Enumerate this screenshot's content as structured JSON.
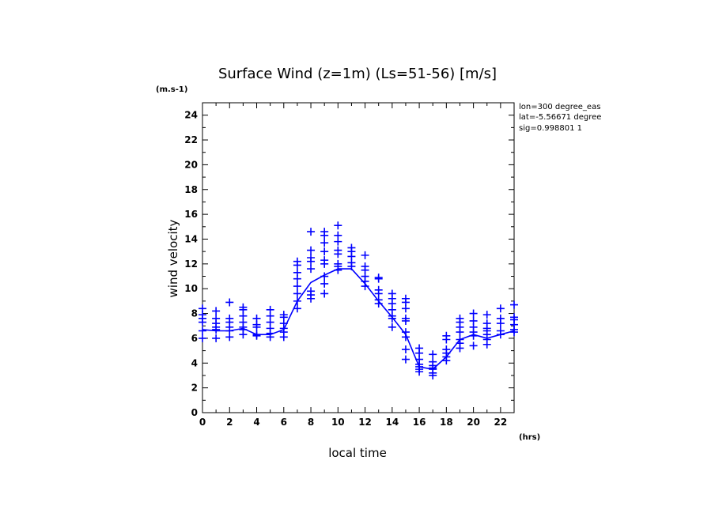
{
  "chart_data": {
    "type": "scatter",
    "title": "Surface Wind (z=1m) (Ls=51-56) [m/s]",
    "ylabel": "wind velocity",
    "yunit": "(m.s-1)",
    "xlabel": "local time",
    "xunit": "(hrs)",
    "xlim": [
      0,
      23
    ],
    "ylim": [
      0,
      25
    ],
    "xticks": [
      0,
      2,
      4,
      6,
      8,
      10,
      12,
      14,
      16,
      18,
      20,
      22
    ],
    "yticks": [
      0,
      2,
      4,
      6,
      8,
      10,
      12,
      14,
      16,
      18,
      20,
      22,
      24
    ],
    "info": [
      "lon=300 degree_eas",
      "lat=-5.56671 degree",
      "sig=0.998801 1"
    ],
    "color": "#0000ff",
    "line": {
      "x": [
        0,
        1,
        2,
        3,
        4,
        5,
        6,
        7,
        8,
        9,
        10,
        11,
        12,
        13,
        14,
        15,
        16,
        17,
        18,
        19,
        20,
        21,
        22,
        23
      ],
      "y": [
        6.7,
        6.6,
        6.6,
        6.8,
        6.3,
        6.3,
        6.7,
        9.0,
        10.5,
        11.1,
        11.6,
        11.6,
        10.4,
        9.0,
        7.7,
        6.3,
        3.7,
        3.5,
        4.5,
        5.9,
        6.3,
        6.0,
        6.3,
        6.6
      ]
    },
    "points": [
      {
        "x": 0,
        "y": [
          8.4,
          7.9,
          7.6,
          7.3,
          6.6,
          6.0
        ]
      },
      {
        "x": 1,
        "y": [
          8.2,
          7.6,
          7.2,
          6.9,
          6.7,
          6.0
        ]
      },
      {
        "x": 2,
        "y": [
          8.9,
          7.6,
          7.3,
          6.9,
          6.6,
          6.1
        ]
      },
      {
        "x": 3,
        "y": [
          8.5,
          8.3,
          7.8,
          7.3,
          6.9,
          6.7,
          6.3
        ]
      },
      {
        "x": 4,
        "y": [
          7.6,
          7.1,
          6.9,
          6.3,
          6.2
        ]
      },
      {
        "x": 5,
        "y": [
          8.3,
          7.8,
          7.3,
          6.8,
          6.4,
          6.1
        ]
      },
      {
        "x": 6,
        "y": [
          7.9,
          7.7,
          7.2,
          6.8,
          6.5,
          6.1
        ]
      },
      {
        "x": 7,
        "y": [
          12.2,
          11.9,
          11.3,
          10.8,
          10.2,
          9.6,
          9.0,
          8.4
        ]
      },
      {
        "x": 8,
        "y": [
          14.6,
          13.1,
          12.5,
          12.2,
          11.6,
          9.8,
          9.5,
          9.2
        ]
      },
      {
        "x": 9,
        "y": [
          14.6,
          14.3,
          13.7,
          13.0,
          12.3,
          12.0,
          11.0,
          10.4,
          9.6
        ]
      },
      {
        "x": 10,
        "y": [
          15.1,
          14.3,
          13.8,
          13.1,
          12.8,
          12.0,
          11.8,
          11.5
        ]
      },
      {
        "x": 11,
        "y": [
          13.3,
          13.0,
          12.6,
          12.1,
          11.8
        ]
      },
      {
        "x": 12,
        "y": [
          12.7,
          11.8,
          11.5,
          11.0,
          10.6,
          10.2
        ]
      },
      {
        "x": 13,
        "y": [
          10.9,
          10.8,
          9.9,
          9.6,
          9.1,
          8.8
        ]
      },
      {
        "x": 14,
        "y": [
          9.6,
          9.2,
          8.8,
          8.3,
          7.8,
          7.6,
          6.9
        ]
      },
      {
        "x": 15,
        "y": [
          9.2,
          8.9,
          8.4,
          7.6,
          7.4,
          6.5,
          6.1,
          5.1,
          4.3
        ]
      },
      {
        "x": 16,
        "y": [
          5.2,
          4.8,
          4.3,
          3.9,
          3.7,
          3.5,
          3.3
        ]
      },
      {
        "x": 17,
        "y": [
          4.7,
          4.1,
          3.8,
          3.6,
          3.5,
          3.2,
          3.0
        ]
      },
      {
        "x": 18,
        "y": [
          6.2,
          5.9,
          5.1,
          4.8,
          4.5,
          4.2
        ]
      },
      {
        "x": 19,
        "y": [
          7.6,
          7.3,
          6.9,
          6.5,
          5.9,
          5.6,
          5.2
        ]
      },
      {
        "x": 20,
        "y": [
          8.0,
          7.4,
          6.9,
          6.5,
          6.2,
          5.4
        ]
      },
      {
        "x": 21,
        "y": [
          7.9,
          7.2,
          6.8,
          6.6,
          6.3,
          5.9,
          5.5
        ]
      },
      {
        "x": 22,
        "y": [
          8.4,
          7.6,
          7.2,
          6.6,
          6.3
        ]
      },
      {
        "x": 23,
        "y": [
          8.7,
          7.7,
          7.5,
          7.1,
          6.7,
          6.5
        ]
      }
    ]
  }
}
